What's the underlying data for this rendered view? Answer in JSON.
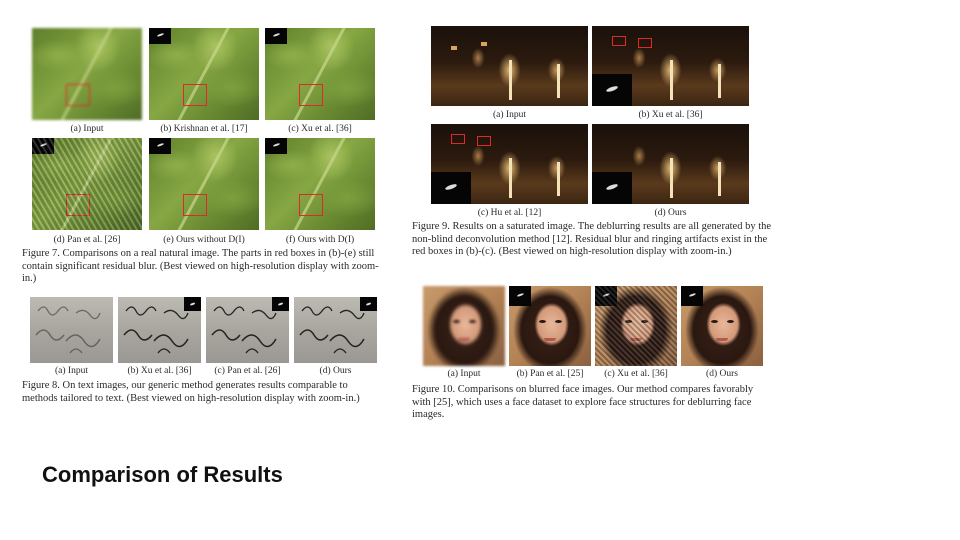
{
  "slide_title": "Comparison of Results",
  "figure7": {
    "subcaptions": [
      "(a) Input",
      "(b) Krishnan et al. [17]",
      "(c) Xu et al. [36]",
      "(d) Pan et al. [26]",
      "(e) Ours without D(I)",
      "(f) Ours with D(I)"
    ],
    "caption": "Figure 7. Comparisons on a real natural image. The parts in red boxes in (b)-(e) still contain significant residual blur. (Best viewed on high-resolution display with zoom-in.)"
  },
  "figure8": {
    "subcaptions": [
      "(a) Input",
      "(b) Xu et al. [36]",
      "(c) Pan et al. [26]",
      "(d) Ours"
    ],
    "caption": "Figure 8. On text images, our generic method generates results comparable to methods tailored to text. (Best viewed on high-resolution display with zoom-in.)"
  },
  "figure9": {
    "subcaptions": [
      "(a) Input",
      "(b) Xu et al. [36]",
      "(c) Hu et al. [12]",
      "(d) Ours"
    ],
    "caption": "Figure 9. Results on a saturated image. The deblurring results are all generated by the non-blind deconvolution method [12]. Residual blur and ringing artifacts exist in the red boxes in (b)-(c). (Best viewed on high-resolution display with zoom-in.)"
  },
  "figure10": {
    "subcaptions": [
      "(a) Input",
      "(b) Pan et al. [25]",
      "(c) Xu et al. [36]",
      "(d) Ours"
    ],
    "caption": "Figure 10. Comparisons on blurred face images. Our method compares favorably with [25], which uses a face dataset to explore face structures for deblurring face images."
  }
}
